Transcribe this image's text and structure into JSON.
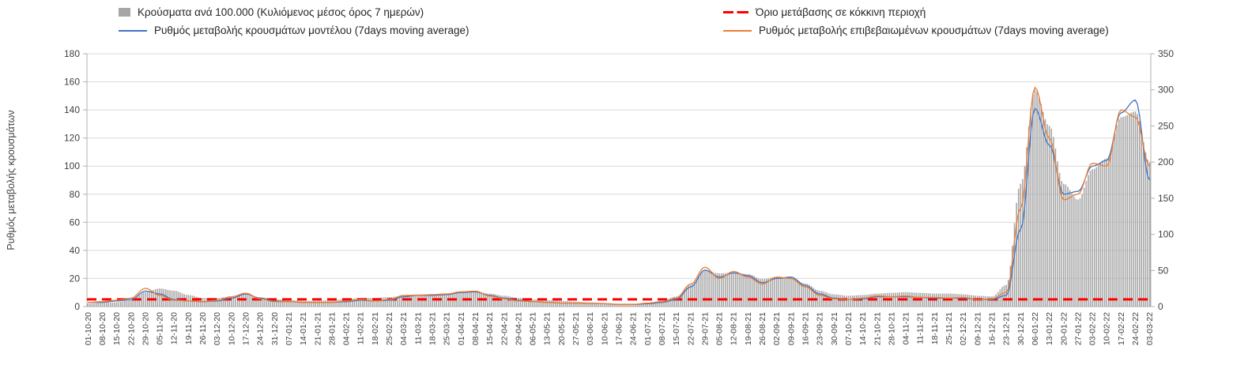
{
  "colors": {
    "bars": "#a6a6a6",
    "model_line": "#4472c4",
    "confirmed_line": "#ed7d31",
    "threshold": "#ff0000",
    "grid": "#d9d9d9",
    "axis": "#b0b0b0",
    "tick_text": "#404040"
  },
  "chart_data": {
    "type": "combo-bar-line",
    "legend_position": "top",
    "grid": true,
    "y_left": {
      "title": "Ρυθμός μεταβολής κρουσμάτων",
      "min": 0,
      "max": 180,
      "step": 20
    },
    "y_right": {
      "min": 0,
      "max": 350,
      "step": 50
    },
    "threshold": {
      "name": "Όριο μετάβασης σε κόκκινη περιοχή",
      "axis": "right",
      "value": 10,
      "color": "#ff0000",
      "style": "dashed"
    },
    "categories": [
      "01-10-20",
      "08-10-20",
      "15-10-20",
      "22-10-20",
      "29-10-20",
      "05-11-20",
      "12-11-20",
      "19-11-20",
      "26-11-20",
      "03-12-20",
      "10-12-20",
      "17-12-20",
      "24-12-20",
      "31-12-20",
      "07-01-21",
      "14-01-21",
      "21-01-21",
      "28-01-21",
      "04-02-21",
      "11-02-21",
      "18-02-21",
      "25-02-21",
      "04-03-21",
      "11-03-21",
      "18-03-21",
      "25-03-21",
      "01-04-21",
      "08-04-21",
      "15-04-21",
      "22-04-21",
      "29-04-21",
      "06-05-21",
      "13-05-21",
      "20-05-21",
      "27-05-21",
      "03-06-21",
      "10-06-21",
      "17-06-21",
      "24-06-21",
      "01-07-21",
      "08-07-21",
      "15-07-21",
      "22-07-21",
      "29-07-21",
      "05-08-21",
      "12-08-21",
      "19-08-21",
      "26-08-21",
      "02-09-21",
      "09-09-21",
      "16-09-21",
      "23-09-21",
      "30-09-21",
      "07-10-21",
      "14-10-21",
      "21-10-21",
      "28-10-21",
      "04-11-21",
      "11-11-21",
      "18-11-21",
      "25-11-21",
      "02-12-21",
      "09-12-21",
      "16-12-21",
      "23-12-21",
      "30-12-21",
      "06-01-22",
      "13-01-22",
      "20-01-22",
      "27-01-22",
      "03-02-22",
      "10-02-22",
      "17-02-22",
      "24-02-22",
      "03-03-22"
    ],
    "series": [
      {
        "name": "Κρούσματα ανά 100.000 (Κυλιόμενος μέσος όρος 7 ημερών)",
        "type": "bar",
        "axis": "right",
        "color": "#a6a6a6",
        "values": [
          4,
          5,
          6,
          9,
          20,
          25,
          22,
          16,
          12,
          12,
          14,
          17,
          13,
          10,
          9,
          8,
          8,
          9,
          10,
          12,
          12,
          13,
          15,
          17,
          17,
          18,
          20,
          21,
          18,
          15,
          12,
          10,
          9,
          8,
          7,
          6,
          5,
          4,
          4,
          5,
          8,
          14,
          30,
          50,
          46,
          47,
          45,
          38,
          41,
          40,
          32,
          22,
          17,
          15,
          16,
          18,
          19,
          20,
          19,
          18,
          18,
          17,
          15,
          14,
          30,
          170,
          300,
          250,
          170,
          148,
          190,
          205,
          262,
          270,
          200
        ]
      },
      {
        "name": "Ρυθμός μεταβολής κρουσμάτων μοντέλου (7days moving average)",
        "type": "line",
        "axis": "left",
        "color": "#4472c4",
        "values": [
          3,
          3,
          4,
          5,
          11,
          9,
          5,
          4,
          3.5,
          4,
          6,
          9,
          6,
          4,
          3.5,
          3,
          3,
          3,
          3.5,
          4.5,
          4,
          4.5,
          7,
          8,
          8,
          8.5,
          10,
          10.5,
          8,
          6,
          4.5,
          3.5,
          3,
          2.5,
          2.5,
          2,
          2,
          1.5,
          1.5,
          2,
          3,
          5,
          14,
          26,
          21,
          24,
          22,
          17,
          20,
          21,
          15,
          9,
          6,
          5,
          5.5,
          7,
          7,
          7,
          6.5,
          6,
          6,
          6,
          5,
          5,
          8,
          55,
          141,
          115,
          80,
          82,
          100,
          104,
          138,
          147,
          90
        ]
      },
      {
        "name": "Ρυθμός μεταβολής επιβεβαιωμένων κρουσμάτων (7days moving average)",
        "type": "line",
        "axis": "left",
        "color": "#ed7d31",
        "values": [
          3,
          3.5,
          4.5,
          6,
          13,
          8,
          4.5,
          4,
          3.5,
          4.5,
          7,
          9.5,
          5.5,
          3.5,
          3.5,
          3,
          3,
          3,
          4,
          5,
          4,
          5,
          8,
          8,
          8.5,
          9,
          10.5,
          11,
          7.5,
          5.5,
          4,
          3.5,
          3,
          2.5,
          2.5,
          2,
          2,
          1.5,
          1.5,
          2.5,
          3.5,
          6,
          16,
          28,
          20,
          25,
          21,
          16,
          21,
          20,
          14,
          8,
          5.5,
          5,
          6,
          7.5,
          7,
          7.5,
          6.5,
          6.5,
          6,
          6.5,
          5,
          5.5,
          10,
          70,
          156,
          120,
          76,
          80,
          102,
          100,
          140,
          135,
          100
        ]
      }
    ]
  }
}
